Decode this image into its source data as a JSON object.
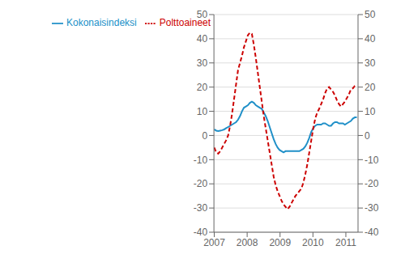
{
  "chart_data": {
    "type": "line",
    "x": [
      2007.0,
      2007.060181,
      2007.120361,
      2007.180542,
      2007.240722,
      2007.300903,
      2007.361083,
      2007.421264,
      2007.481444,
      2007.541625,
      2007.601806,
      2007.661986,
      2007.722167,
      2007.782347,
      2007.842528,
      2007.902708,
      2007.962889,
      2008.023069,
      2008.08325,
      2008.143431,
      2008.203611,
      2008.263792,
      2008.323972,
      2008.384153,
      2008.444333,
      2008.504514,
      2008.564694,
      2008.624875,
      2008.685056,
      2008.745236,
      2008.805417,
      2008.865597,
      2008.925778,
      2008.985958,
      2009.046139,
      2009.106319,
      2009.1665,
      2009.226681,
      2009.286861,
      2009.347042,
      2009.407222,
      2009.467403,
      2009.527583,
      2009.587764,
      2009.647944,
      2009.708125,
      2009.768306,
      2009.828486,
      2009.888667,
      2009.948847,
      2010.009028,
      2010.069208,
      2010.129389,
      2010.189569,
      2010.24975,
      2010.309931,
      2010.370111,
      2010.430292,
      2010.490472,
      2010.550653,
      2010.610833,
      2010.671014,
      2010.731194,
      2010.791375,
      2010.851556,
      2010.911736,
      2010.971917,
      2011.032097,
      2011.092278,
      2011.152458,
      2011.212639,
      2011.272819,
      2011.333
    ],
    "xlim": [
      2006.99,
      2011.37
    ],
    "xticks": [
      2007,
      2008,
      2009,
      2010,
      2011
    ],
    "ylim": [
      -40,
      50
    ],
    "yticks": [
      -40,
      -30,
      -20,
      -10,
      0,
      10,
      20,
      30,
      40,
      50
    ],
    "y2lim": [
      -40,
      50
    ],
    "y2ticks": [
      -40,
      -30,
      -20,
      -10,
      0,
      10,
      20,
      30,
      40,
      50
    ],
    "grid": true,
    "legend": "upper left",
    "series": [
      {
        "name": "Kokonaisindeksi",
        "color": "#2090C8",
        "line_style": "solid",
        "values": [
          2.5,
          2.0,
          1.8,
          2.0,
          2.2,
          2.5,
          3.0,
          3.5,
          4.0,
          4.5,
          5.0,
          5.5,
          6.5,
          8.0,
          10.0,
          11.5,
          12.0,
          12.5,
          13.5,
          14.0,
          13.5,
          12.5,
          12.0,
          11.5,
          11.0,
          9.5,
          8.0,
          6.0,
          3.5,
          1.0,
          -1.5,
          -3.5,
          -5.0,
          -6.0,
          -6.5,
          -7.0,
          -6.5,
          -6.5,
          -6.5,
          -6.5,
          -6.5,
          -6.5,
          -6.5,
          -6.5,
          -6.0,
          -5.5,
          -4.5,
          -3.0,
          -1.0,
          1.5,
          3.0,
          4.0,
          4.5,
          4.5,
          4.5,
          5.0,
          5.0,
          4.5,
          4.0,
          4.0,
          5.0,
          5.5,
          5.5,
          5.0,
          5.0,
          5.0,
          4.5,
          5.0,
          5.5,
          6.0,
          7.0,
          7.5,
          7.5
        ]
      },
      {
        "name": "Polttoaineet",
        "color": "#CC0000",
        "line_style": "dashed",
        "axis": "y2",
        "values": [
          -5.0,
          -7.0,
          -7.5,
          -6.5,
          -5.0,
          -3.5,
          -2.0,
          0.0,
          4.0,
          9.0,
          15.0,
          21.0,
          27.0,
          30.0,
          33.0,
          36.5,
          39.0,
          41.5,
          42.5,
          42.0,
          37.5,
          32.0,
          26.0,
          20.0,
          14.0,
          8.0,
          3.0,
          -2.0,
          -7.0,
          -12.0,
          -17.0,
          -20.5,
          -23.0,
          -25.0,
          -27.0,
          -28.5,
          -29.5,
          -30.5,
          -29.5,
          -28.0,
          -26.5,
          -25.0,
          -24.0,
          -23.0,
          -22.0,
          -19.5,
          -16.0,
          -12.0,
          -7.0,
          -2.0,
          3.0,
          7.0,
          9.5,
          11.0,
          13.0,
          15.0,
          17.5,
          19.5,
          20.0,
          19.0,
          18.0,
          16.5,
          14.5,
          13.0,
          12.0,
          13.0,
          14.0,
          15.5,
          17.0,
          19.0,
          19.5,
          20.5,
          21.0
        ]
      }
    ]
  }
}
